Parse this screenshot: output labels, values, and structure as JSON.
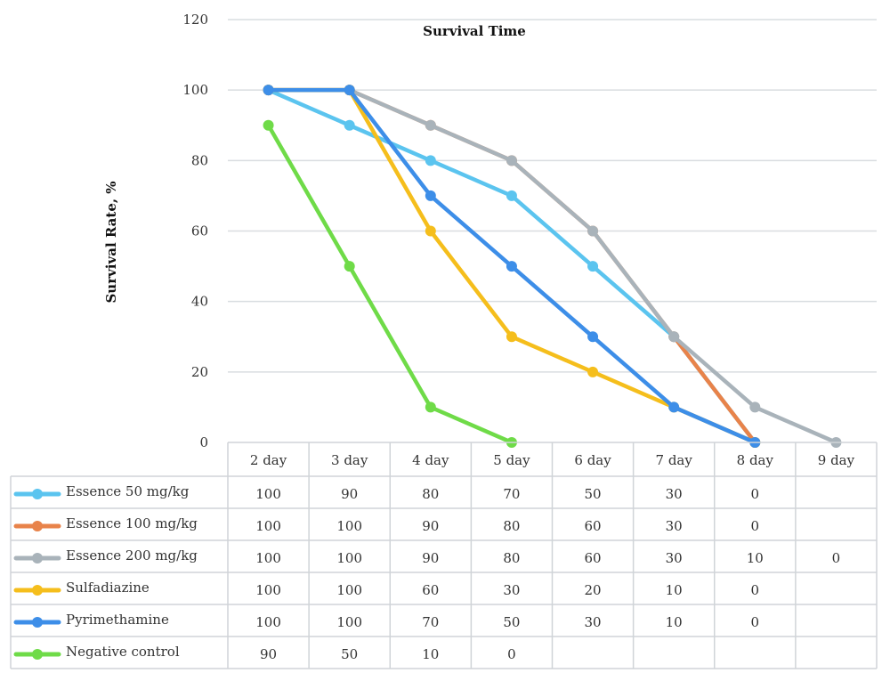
{
  "chart_data": {
    "type": "line",
    "title": "Survival Time",
    "ylabel": "Survival Rate, %",
    "xlabel": "",
    "ylim": [
      0,
      120
    ],
    "yticks": [
      0,
      20,
      40,
      60,
      80,
      100,
      120
    ],
    "grid": true,
    "legend_placement": "data-table",
    "categories": [
      "2 day",
      "3 day",
      "4 day",
      "5 day",
      "6 day",
      "7 day",
      "8 day",
      "9 day"
    ],
    "series": [
      {
        "name": "Essence 50 mg/kg",
        "color": "#5bc4ef",
        "values": [
          100,
          90,
          80,
          70,
          50,
          30,
          0,
          null
        ]
      },
      {
        "name": "Essence 100 mg/kg",
        "color": "#e8834a",
        "values": [
          100,
          100,
          90,
          80,
          60,
          30,
          0,
          null
        ]
      },
      {
        "name": "Essence 200 mg/kg",
        "color": "#a9b3ba",
        "values": [
          100,
          100,
          90,
          80,
          60,
          30,
          10,
          0
        ]
      },
      {
        "name": "Sulfadiazine",
        "color": "#f5be1c",
        "values": [
          100,
          100,
          60,
          30,
          20,
          10,
          0,
          null
        ]
      },
      {
        "name": "Pyrimethamine",
        "color": "#3d8ee8",
        "values": [
          100,
          100,
          70,
          50,
          30,
          10,
          0,
          null
        ]
      },
      {
        "name": "Negative control",
        "color": "#6fdb48",
        "values": [
          90,
          50,
          10,
          0,
          null,
          null,
          null,
          null
        ]
      }
    ]
  }
}
